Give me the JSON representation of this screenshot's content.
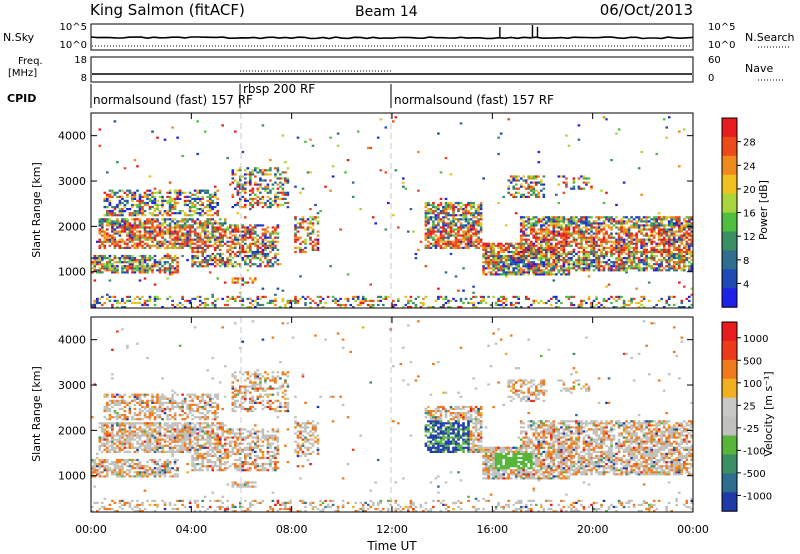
{
  "header": {
    "station": "King Salmon (fitACF)",
    "beam": "Beam 14",
    "date": "06/Oct/2013"
  },
  "sky_panel": {
    "left_label": "N.Sky",
    "right_label": "N.Search",
    "left_ticks": [
      "10^5",
      "10^0"
    ],
    "right_ticks": [
      "10^5",
      "10^0"
    ]
  },
  "freq_panel": {
    "left_label": "Freq.",
    "left_unit": "[MHz]",
    "right_label": "Nave",
    "left_ticks": [
      "18",
      "8"
    ],
    "right_ticks": [
      "60",
      "0"
    ]
  },
  "cpid": {
    "label": "CPID",
    "segments": [
      {
        "text": "normalsound (fast) 157 RF",
        "start_h": 0,
        "end_h": 6
      },
      {
        "text": "rbsp 200 RF",
        "start_h": 6,
        "end_h": 12
      },
      {
        "text": "normalsound (fast) 157 RF",
        "start_h": 12,
        "end_h": 24
      }
    ]
  },
  "chart_data": [
    {
      "type": "heatmap",
      "panel": "power",
      "ylabel": "Slant Range [km]",
      "y_ticks": [
        "1000",
        "2000",
        "3000",
        "4000"
      ],
      "ylim": [
        200,
        4500
      ],
      "xlim": [
        0,
        24
      ],
      "colorbar": {
        "label": "Power [dB]",
        "ticks": [
          "4",
          "8",
          "12",
          "16",
          "20",
          "24",
          "28"
        ],
        "colors": [
          "#1e22e6",
          "#1f49b4",
          "#2e6e8e",
          "#3c8f63",
          "#4fbf3f",
          "#a8d63c",
          "#f0c020",
          "#f08a1c",
          "#ec4a1a",
          "#e81c1c"
        ]
      }
    },
    {
      "type": "heatmap",
      "panel": "velocity",
      "ylabel": "Slant Range [km]",
      "y_ticks": [
        "1000",
        "2000",
        "3000",
        "4000"
      ],
      "ylim": [
        200,
        4500
      ],
      "xlim": [
        0,
        24
      ],
      "colorbar": {
        "label": "Velocity [m s⁻¹]",
        "ticks": [
          "1000",
          "500",
          "100",
          "25",
          "-25",
          "-100",
          "-500",
          "-1000"
        ],
        "colors": [
          "#1e3aa8",
          "#2d6e8f",
          "#3c8f63",
          "#57b53a",
          "#c0c0bc",
          "#c8c8c4",
          "#f0b020",
          "#f07a1c",
          "#ec3a1a",
          "#e81c1c"
        ]
      }
    }
  ],
  "x_ticks": [
    "00:00",
    "04:00",
    "08:00",
    "12:00",
    "16:00",
    "20:00",
    "00:00"
  ],
  "xlabel": "Time UT"
}
